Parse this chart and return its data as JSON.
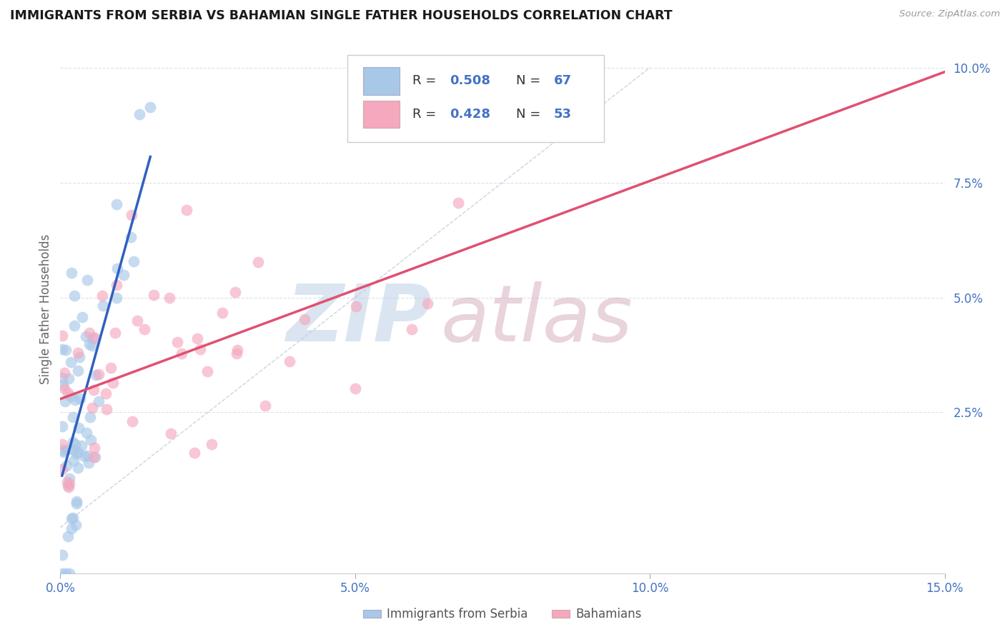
{
  "title": "IMMIGRANTS FROM SERBIA VS BAHAMIAN SINGLE FATHER HOUSEHOLDS CORRELATION CHART",
  "source": "Source: ZipAtlas.com",
  "ylabel": "Single Father Households",
  "xlim": [
    0.0,
    0.15
  ],
  "ylim": [
    -0.01,
    0.105
  ],
  "xticks": [
    0.0,
    0.05,
    0.1,
    0.15
  ],
  "xtick_labels": [
    "0.0%",
    "5.0%",
    "10.0%",
    "15.0%"
  ],
  "yticks": [
    0.025,
    0.05,
    0.075,
    0.1
  ],
  "ytick_labels": [
    "2.5%",
    "5.0%",
    "7.5%",
    "10.0%"
  ],
  "legend_R1": "0.508",
  "legend_N1": "67",
  "legend_R2": "0.428",
  "legend_N2": "53",
  "color_serbia": "#a8c8e8",
  "color_bahamian": "#f5a8be",
  "color_serbia_line": "#3060c0",
  "color_bahamian_line": "#e05070",
  "grid_color": "#d8dde8",
  "watermark_zip_color": "#b8cce4",
  "watermark_atlas_color": "#d4a8bc"
}
